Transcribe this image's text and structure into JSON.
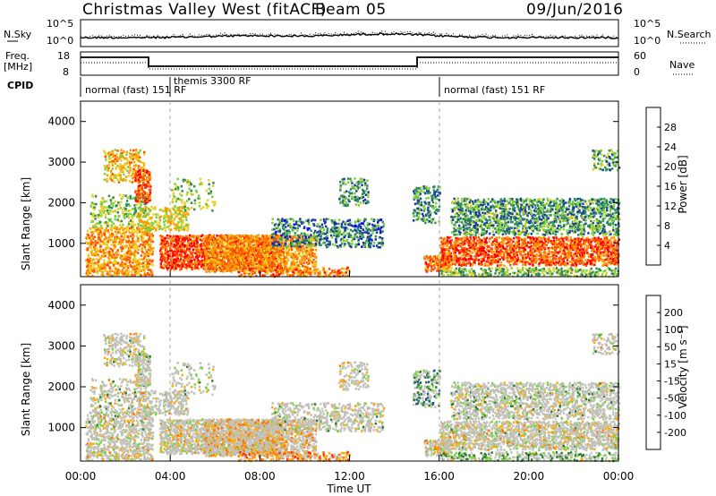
{
  "header": {
    "station": "Christmas Valley West (fitACF)",
    "beam": "Beam 05",
    "date": "09/Jun/2016"
  },
  "strip": {
    "nsky_label": "N.Sky",
    "nsky_ticks": [
      "10^5",
      "10^0"
    ],
    "nsearch_label": "N.Search",
    "freq_label_1": "Freq.",
    "freq_label_2": "[MHz]",
    "freq_ticks": [
      "18",
      "8"
    ],
    "nave_label": "Nave",
    "nave_ticks": [
      "60",
      "0"
    ],
    "cpid_label": "CPID",
    "cpid_segments": [
      {
        "label": "normal (fast)  151 RF",
        "start_h": 0
      },
      {
        "label": "themis 3300 RF",
        "start_h": 3.9
      },
      {
        "label": "normal (fast)  151 RF",
        "start_h": 16
      }
    ]
  },
  "colors": {
    "power_scale": [
      "#0000ff",
      "#1a3ca0",
      "#2e8b57",
      "#7fcf3a",
      "#e8d020",
      "#ff9900",
      "#ff5500",
      "#ff0000"
    ],
    "velocity_scale": [
      "#0000c0",
      "#1f4fa0",
      "#2e7d32",
      "#76d43a",
      "#c8c8c0",
      "#ffaa00",
      "#ff7700",
      "#ff2a00",
      "#ff0000"
    ],
    "ground_scatter": "#c0c0b8"
  },
  "chart_data": [
    {
      "type": "heatmap",
      "name": "power",
      "ylabel": "Slant Range [km]",
      "yticks": [
        "4000",
        "3000",
        "2000",
        "1000"
      ],
      "ylim": [
        180,
        4500
      ],
      "xlim": [
        0,
        24
      ],
      "colorbar_label": "Power [dB]",
      "colorbar_ticks": [
        "28",
        "24",
        "20",
        "16",
        "12",
        "8",
        "4"
      ],
      "cmin": 0,
      "cmax": 32
    },
    {
      "type": "heatmap",
      "name": "velocity",
      "ylabel": "Slant Range [km]",
      "yticks": [
        "4000",
        "3000",
        "2000",
        "1000"
      ],
      "ylim": [
        180,
        4500
      ],
      "xlim": [
        0,
        24
      ],
      "xlabel": "Time UT",
      "xticks": [
        "00:00",
        "04:00",
        "08:00",
        "12:00",
        "16:00",
        "20:00",
        "00:00"
      ],
      "colorbar_label": "Velocity [m s⁻¹]",
      "colorbar_ticks": [
        "200",
        "100",
        "50",
        "15",
        "-15",
        "-50",
        "-100",
        "-200"
      ],
      "cmin": -250,
      "cmax": 250
    }
  ]
}
